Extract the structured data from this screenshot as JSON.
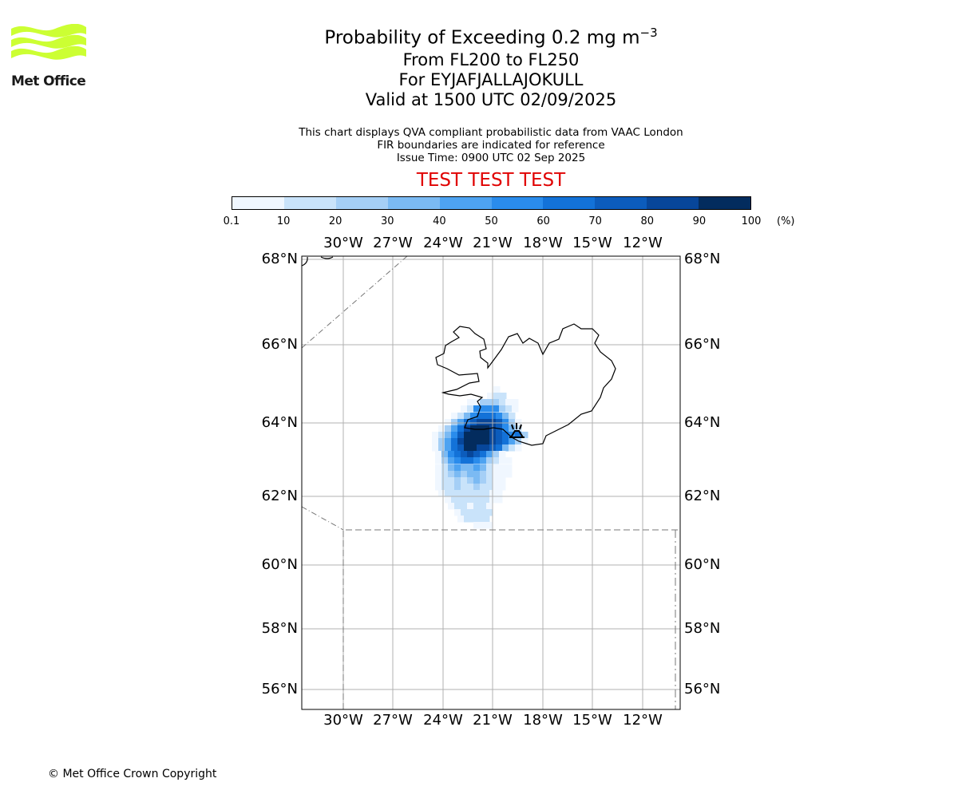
{
  "logo": {
    "text": "Met Office",
    "color": "#ccff33"
  },
  "title": {
    "line1_main": "Probability of Exceeding 0.2 mg m",
    "line1_sup": "−3",
    "line2": "From FL200 to FL250",
    "line3": "For EYJAFJALLAJOKULL",
    "line4": "Valid at 1500 UTC 02/09/2025"
  },
  "subtitle": {
    "line1": "This chart displays QVA compliant probabilistic data from VAAC London",
    "line2": "FIR boundaries are indicated for reference",
    "line3": "Issue Time: 0900 UTC 02 Sep 2025"
  },
  "test_banner": "TEST TEST TEST",
  "colorbar": {
    "ticks": [
      "0.1",
      "10",
      "20",
      "30",
      "40",
      "50",
      "60",
      "70",
      "80",
      "90",
      "100"
    ],
    "unit": "(%)",
    "colors": [
      "#f0f7ff",
      "#c9e3fa",
      "#a5cff6",
      "#7bbaf3",
      "#4ea3f1",
      "#2a8cec",
      "#1372d8",
      "#0c5cbc",
      "#07469a",
      "#032c5e"
    ]
  },
  "map": {
    "lon_labels": [
      "30°W",
      "27°W",
      "24°W",
      "21°W",
      "18°W",
      "15°W",
      "12°W"
    ],
    "lat_labels": [
      "68°N",
      "66°N",
      "64°N",
      "62°N",
      "60°N",
      "58°N",
      "56°N"
    ],
    "grid_color": "#b0b0b0",
    "volcano": "EYJAFJALLAJOKULL"
  },
  "copyright": "© Met Office Crown Copyright"
}
